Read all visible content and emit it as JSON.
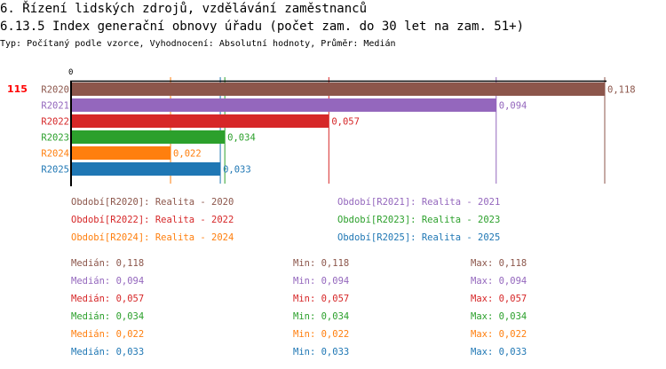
{
  "header": {
    "title": "6. Řízení lidských zdrojů, vzdělávání zaměstnanců",
    "subtitle": "6.13.5 Index generační obnovy úřadu (počet zam. do 30 let na zam. 51+)",
    "info": "Typ: Počítaný podle vzorce, Vyhodnocení: Absolutní hodnoty, Průměr: Medián"
  },
  "chart_data": {
    "type": "bar",
    "orientation": "horizontal",
    "id_label": "115",
    "axis_zero_label": "0",
    "categories": [
      "R2020",
      "R2021",
      "R2022",
      "R2023",
      "R2024",
      "R2025"
    ],
    "values": [
      0.118,
      0.094,
      0.057,
      0.034,
      0.022,
      0.033
    ],
    "value_labels": [
      "0,118",
      "0,094",
      "0,057",
      "0,034",
      "0,022",
      "0,033"
    ],
    "colors": [
      "#8c564b",
      "#9467bd",
      "#d62728",
      "#2ca02c",
      "#ff7f0e",
      "#1f77b4"
    ],
    "xlim": [
      0,
      0.118
    ],
    "legend": [
      "Období[R2020]: Realita - 2020",
      "Období[R2021]: Realita - 2021",
      "Období[R2022]: Realita - 2022",
      "Období[R2023]: Realita - 2023",
      "Období[R2024]: Realita - 2024",
      "Období[R2025]: Realita - 2025"
    ],
    "stats": [
      {
        "median": "Medián: 0,118",
        "min": "Min: 0,118",
        "max": "Max: 0,118"
      },
      {
        "median": "Medián: 0,094",
        "min": "Min: 0,094",
        "max": "Max: 0,094"
      },
      {
        "median": "Medián: 0,057",
        "min": "Min: 0,057",
        "max": "Max: 0,057"
      },
      {
        "median": "Medián: 0,034",
        "min": "Min: 0,034",
        "max": "Max: 0,034"
      },
      {
        "median": "Medián: 0,022",
        "min": "Min: 0,022",
        "max": "Max: 0,022"
      },
      {
        "median": "Medián: 0,033",
        "min": "Min: 0,033",
        "max": "Max: 0,033"
      }
    ]
  }
}
